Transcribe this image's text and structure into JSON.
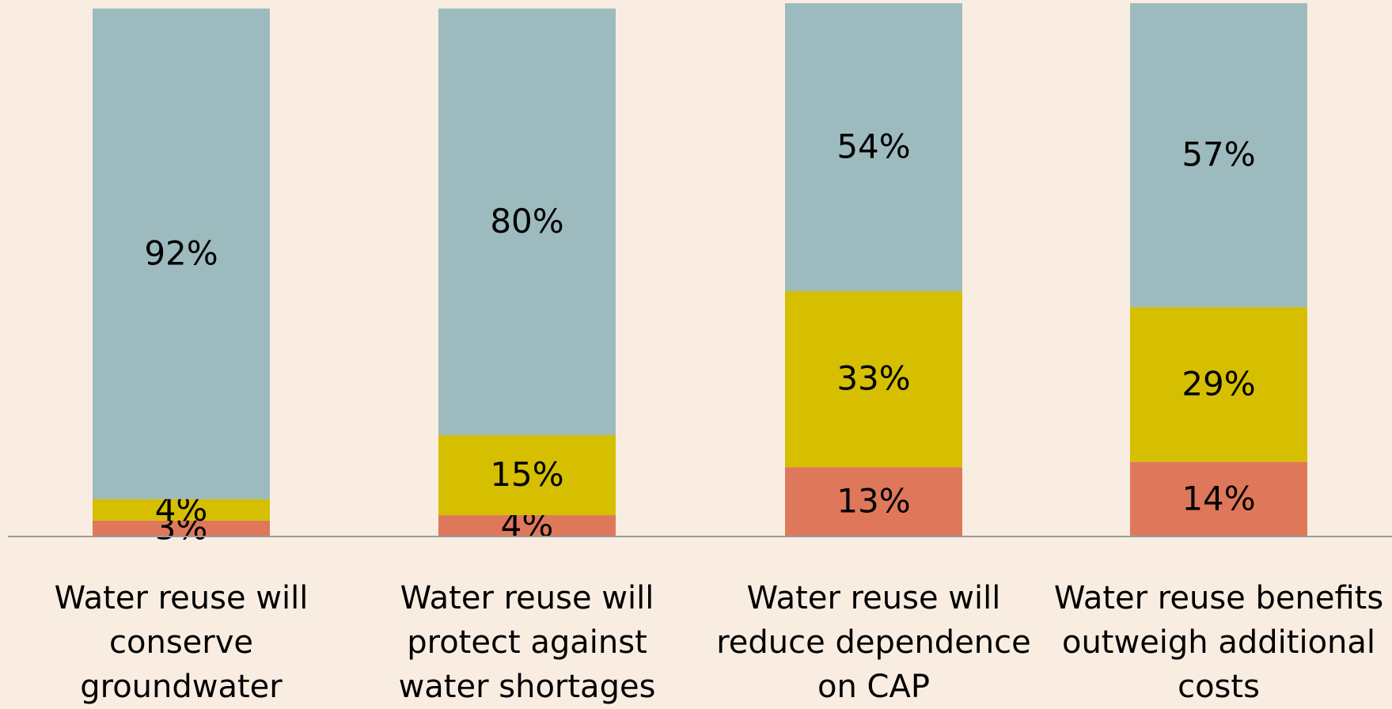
{
  "chart_data": {
    "type": "stacked_bar",
    "categories": [
      "Water reuse will conserve groundwater",
      "Water reuse will protect against water shortages",
      "Water reuse will reduce dependence on CAP",
      "Water reuse benefits outweigh additional costs"
    ],
    "series": [
      {
        "color": "#df785b",
        "values": [
          3,
          4,
          13,
          14
        ],
        "value_labels": [
          "3%",
          "4%",
          "13%",
          "14%"
        ]
      },
      {
        "color": "#d5bf00",
        "values": [
          4,
          15,
          33,
          29
        ],
        "value_labels": [
          "4%",
          "15%",
          "33%",
          "29%"
        ]
      },
      {
        "color": "#9dbbbe",
        "values": [
          92,
          80,
          54,
          57
        ],
        "value_labels": [
          "92%",
          "80%",
          "54%",
          "57%"
        ]
      }
    ],
    "ylim": [
      0,
      100
    ]
  }
}
